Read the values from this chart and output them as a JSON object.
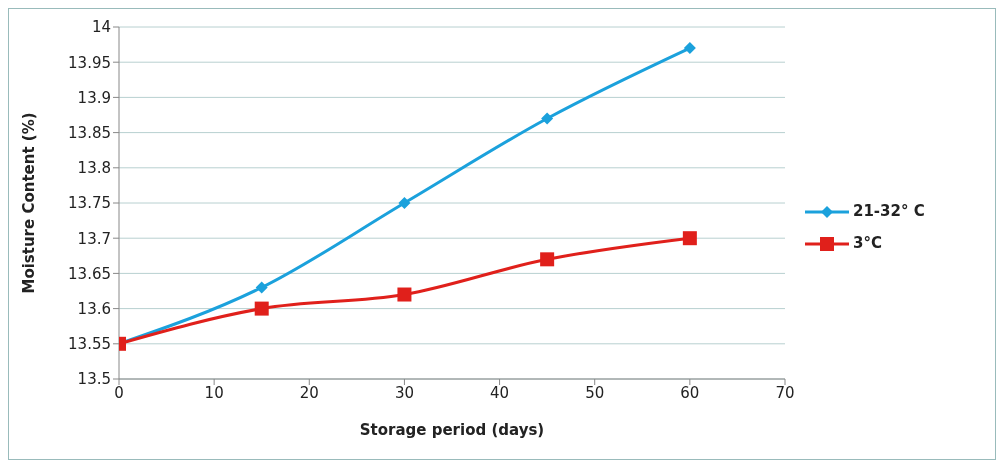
{
  "chart_data": {
    "type": "line",
    "xlabel": "Storage period (days)",
    "ylabel": "Moisture Content (%)",
    "x": [
      0,
      15,
      30,
      45,
      60
    ],
    "series": [
      {
        "name": "21-32° C",
        "color": "#1ba1dc",
        "values": [
          13.55,
          13.63,
          13.75,
          13.87,
          13.97
        ],
        "marker": "diamond"
      },
      {
        "name": "3°C",
        "color": "#e0201b",
        "values": [
          13.55,
          13.6,
          13.62,
          13.67,
          13.7
        ],
        "marker": "square"
      }
    ],
    "xlim": [
      0,
      70
    ],
    "xticks": [
      0,
      10,
      20,
      30,
      40,
      50,
      60,
      70
    ],
    "ylim": [
      13.5,
      14
    ],
    "yticks": [
      13.5,
      13.55,
      13.6,
      13.65,
      13.7,
      13.75,
      13.8,
      13.85,
      13.9,
      13.95,
      14
    ],
    "grid": "y",
    "legend": "right",
    "line_style": "solid"
  }
}
